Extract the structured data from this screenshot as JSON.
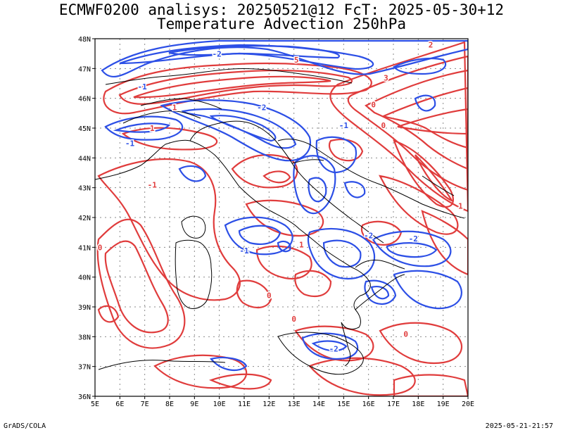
{
  "title_line1": "ECMWF0200 analisys: 20250521@12 FcT: 2025-05-30+12",
  "title_line2": "Temperature Advection 250hPa",
  "footer_left": "GrADS/COLA",
  "footer_right": "2025-05-21-21:57",
  "colors": {
    "positive": "#e03c3c",
    "negative": "#2c4fe6",
    "coast": "#000000",
    "grid": "#8a8a8a"
  },
  "map": {
    "lon_range": [
      5,
      20
    ],
    "lat_range": [
      36,
      48
    ],
    "lon_labels": [
      "5E",
      "6E",
      "7E",
      "8E",
      "9E",
      "10E",
      "11E",
      "12E",
      "13E",
      "14E",
      "15E",
      "16E",
      "17E",
      "18E",
      "19E",
      "20E"
    ],
    "lat_labels": [
      "36N",
      "37N",
      "38N",
      "39N",
      "40N",
      "41N",
      "42N",
      "43N",
      "44N",
      "45N",
      "46N",
      "47N",
      "48N"
    ],
    "contour_labels": [
      {
        "text": "-1",
        "lon": 15.0,
        "lat": 45.0,
        "sign": "neg"
      },
      {
        "text": "-2",
        "lon": 11.7,
        "lat": 45.6,
        "sign": "neg"
      },
      {
        "text": "-1",
        "lon": 6.4,
        "lat": 44.4,
        "sign": "neg"
      },
      {
        "text": "-1",
        "lon": 11.0,
        "lat": 40.8,
        "sign": "neg"
      },
      {
        "text": "-2",
        "lon": 14.6,
        "lat": 37.5,
        "sign": "neg"
      },
      {
        "text": "-2",
        "lon": 16.0,
        "lat": 41.3,
        "sign": "neg"
      },
      {
        "text": "-2",
        "lon": 17.8,
        "lat": 41.2,
        "sign": "neg"
      },
      {
        "text": "-2",
        "lon": 9.9,
        "lat": 47.4,
        "sign": "neg"
      },
      {
        "text": "-1",
        "lon": 6.9,
        "lat": 46.3,
        "sign": "neg"
      },
      {
        "text": "0",
        "lon": 16.2,
        "lat": 45.7,
        "sign": "pos"
      },
      {
        "text": "1",
        "lon": 7.3,
        "lat": 44.9,
        "sign": "pos"
      },
      {
        "text": "-1",
        "lon": 7.3,
        "lat": 43.0,
        "sign": "pos"
      },
      {
        "text": "0",
        "lon": 5.2,
        "lat": 40.9,
        "sign": "pos"
      },
      {
        "text": "0",
        "lon": 12.0,
        "lat": 39.3,
        "sign": "pos"
      },
      {
        "text": "0",
        "lon": 13.0,
        "lat": 38.5,
        "sign": "pos"
      },
      {
        "text": "1",
        "lon": 13.3,
        "lat": 41.0,
        "sign": "pos"
      },
      {
        "text": "0",
        "lon": 16.6,
        "lat": 45.0,
        "sign": "pos"
      },
      {
        "text": "0",
        "lon": 17.5,
        "lat": 38.0,
        "sign": "pos"
      },
      {
        "text": "3",
        "lon": 16.7,
        "lat": 46.6,
        "sign": "pos"
      },
      {
        "text": "1",
        "lon": 19.7,
        "lat": 42.3,
        "sign": "pos"
      },
      {
        "text": "2",
        "lon": 18.5,
        "lat": 47.7,
        "sign": "pos"
      },
      {
        "text": "1",
        "lon": 8.2,
        "lat": 45.6,
        "sign": "pos"
      },
      {
        "text": "5",
        "lon": 13.1,
        "lat": 47.2,
        "sign": "pos"
      }
    ]
  }
}
